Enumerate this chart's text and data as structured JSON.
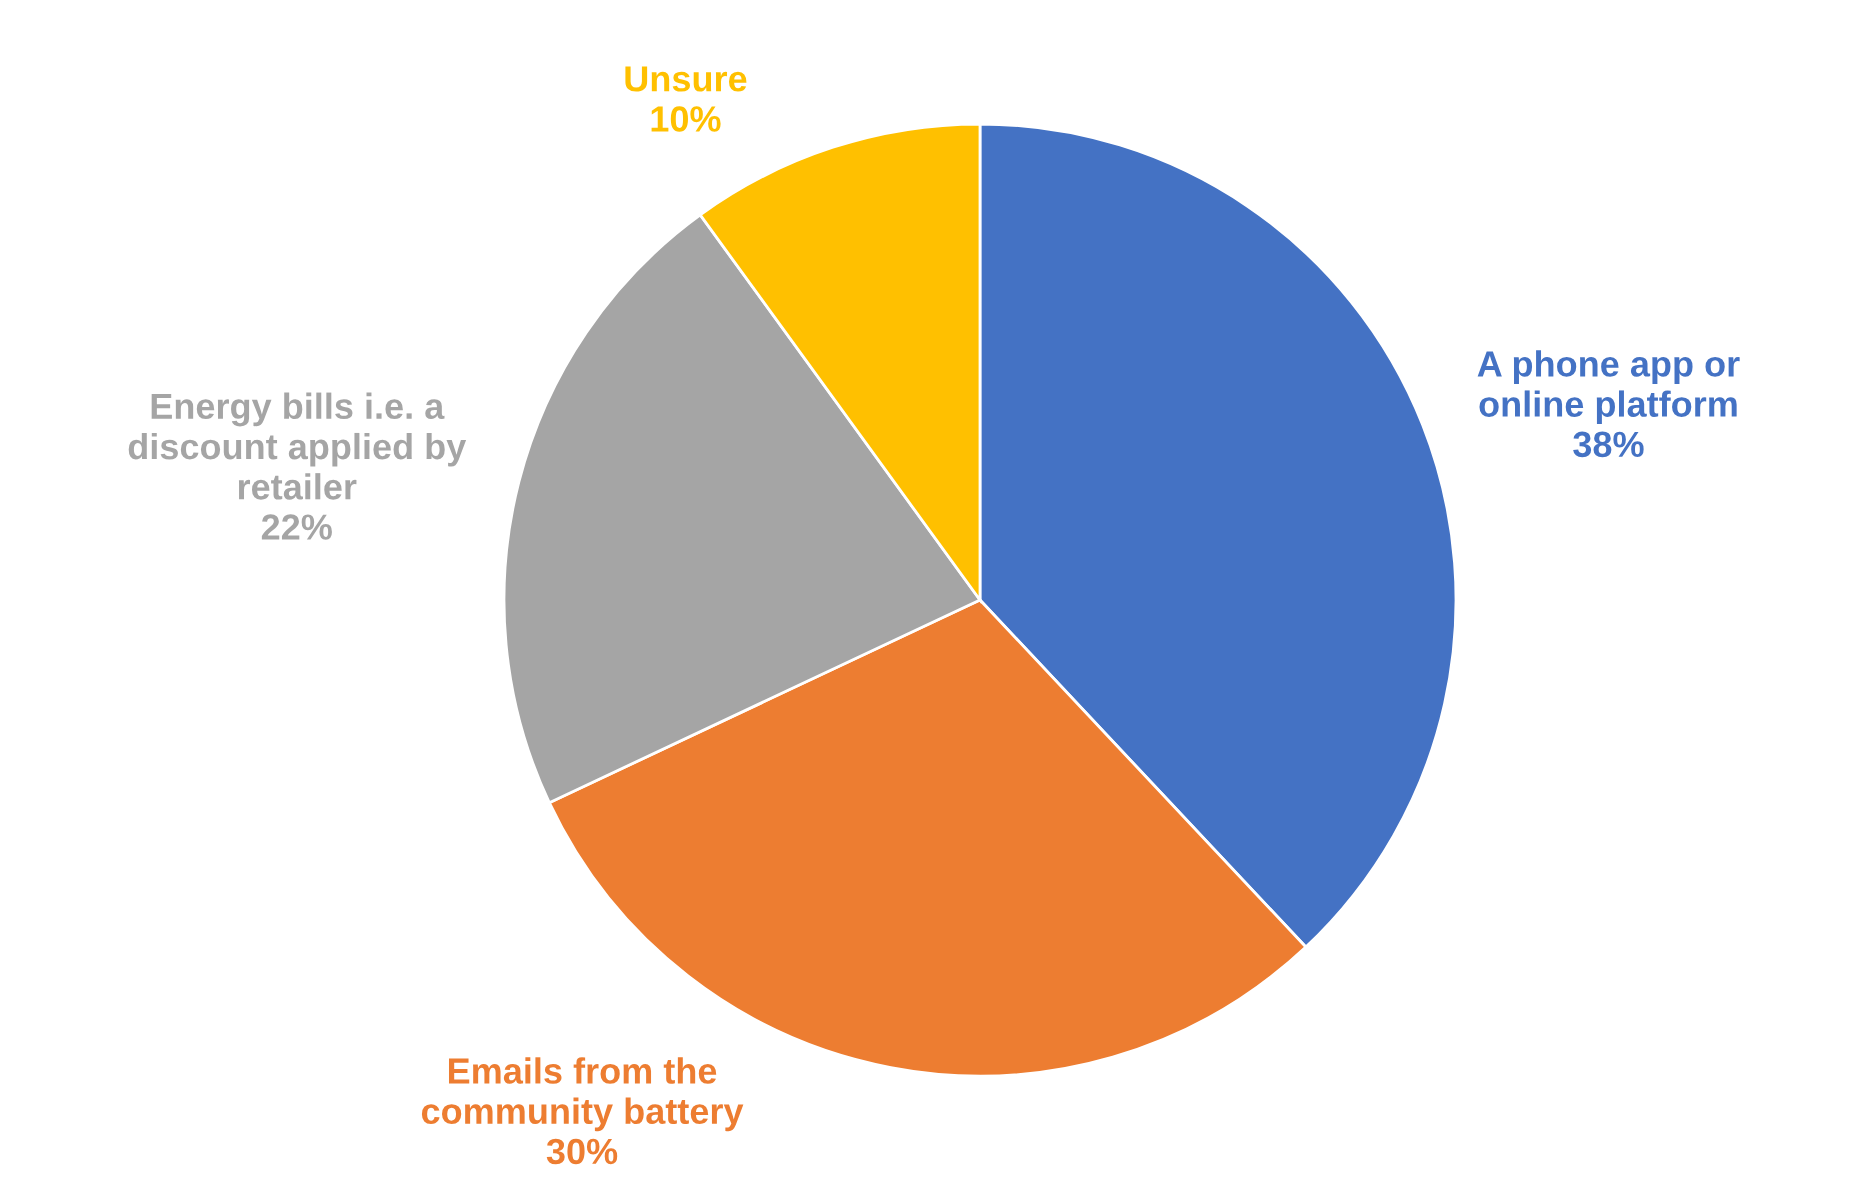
{
  "chart_data": {
    "type": "pie",
    "categories": [
      "A phone app or online platform",
      "Emails from the community battery",
      "Energy bills i.e. a discount applied by retailer",
      "Unsure"
    ],
    "values": [
      38,
      30,
      22,
      10
    ],
    "value_labels": [
      "38%",
      "30%",
      "22%",
      "10%"
    ],
    "colors": [
      "#4472c4",
      "#ed7d31",
      "#a5a5a5",
      "#ffc000"
    ],
    "legend": false
  }
}
